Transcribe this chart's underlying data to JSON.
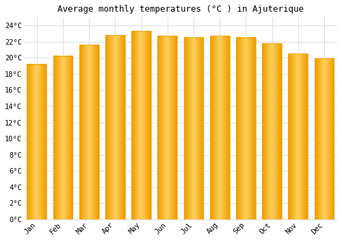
{
  "title": "Average monthly temperatures (°C ) in Ajuterique",
  "months": [
    "Jan",
    "Feb",
    "Mar",
    "Apr",
    "May",
    "Jun",
    "Jul",
    "Aug",
    "Sep",
    "Oct",
    "Nov",
    "Dec"
  ],
  "values": [
    19.2,
    20.2,
    21.6,
    22.8,
    23.3,
    22.7,
    22.5,
    22.7,
    22.5,
    21.8,
    20.5,
    19.9
  ],
  "bar_color_center": "#FFD060",
  "bar_color_edge": "#F0A000",
  "background_color": "#ffffff",
  "grid_color": "#dddddd",
  "ytick_labels": [
    "0°C",
    "2°C",
    "4°C",
    "6°C",
    "8°C",
    "10°C",
    "12°C",
    "14°C",
    "16°C",
    "18°C",
    "20°C",
    "22°C",
    "24°C"
  ],
  "ytick_values": [
    0,
    2,
    4,
    6,
    8,
    10,
    12,
    14,
    16,
    18,
    20,
    22,
    24
  ],
  "ylim": [
    0,
    25
  ],
  "title_fontsize": 9,
  "tick_fontsize": 7.5,
  "font_family": "monospace"
}
